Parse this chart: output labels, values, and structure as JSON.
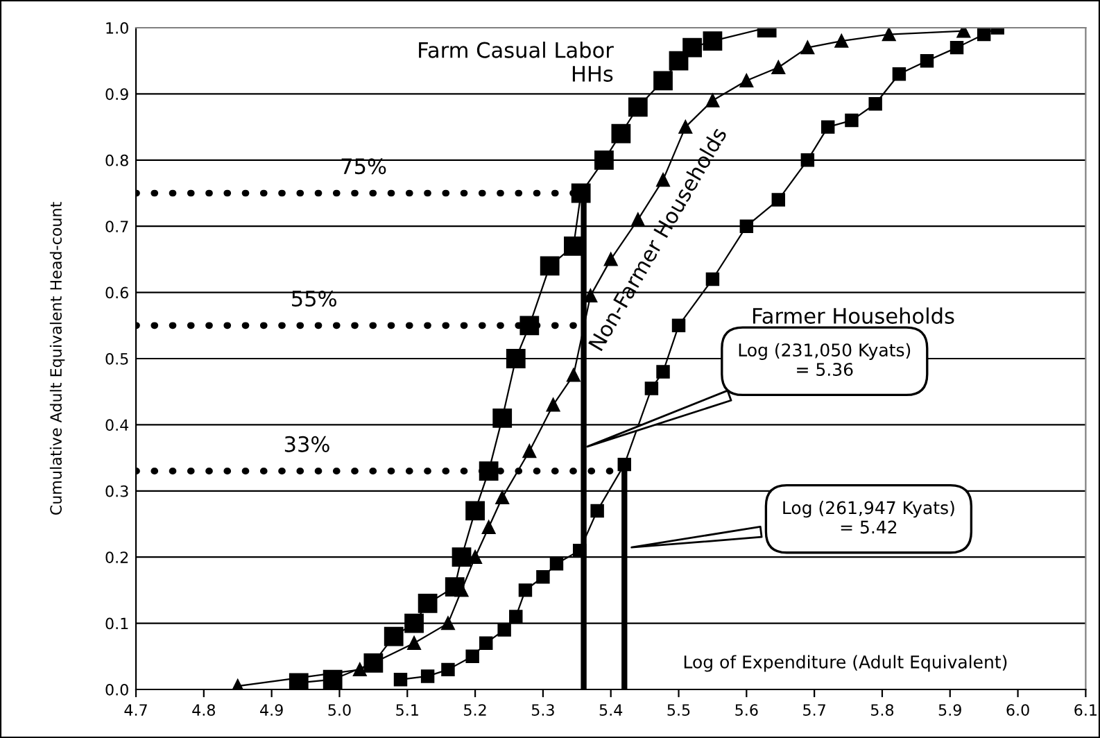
{
  "chart_data": {
    "type": "line",
    "xlabel": "Log of Expenditure (Adult Equivalent)",
    "ylabel": "Cumulative Adult Equivalent Head-count",
    "xlim": [
      4.7,
      6.1
    ],
    "xticks": [
      4.7,
      4.8,
      4.9,
      {
        "value": 5,
        "label": "5.0"
      },
      5.1,
      5.2,
      5.3,
      5.4,
      5.5,
      5.6,
      5.7,
      5.8,
      5.9,
      {
        "value": 6,
        "label": "6.0"
      },
      6.1
    ],
    "ylim": [
      0.0,
      1.0
    ],
    "yticks": [
      {
        "value": 0,
        "label": "0.0"
      },
      0.1,
      0.2,
      0.3,
      0.4,
      0.5,
      0.6,
      0.7,
      0.8,
      0.9,
      {
        "value": 1,
        "label": "1.0"
      }
    ],
    "grid": "y",
    "legend": false,
    "series": [
      {
        "name": "Farm Casual Labor\nHHs",
        "color": "#000000",
        "marker": "square",
        "x": [
          4.94,
          4.99,
          5.05,
          5.08,
          5.11,
          5.13,
          5.17,
          5.18,
          5.2,
          5.22,
          5.24,
          5.26,
          5.28,
          5.31,
          5.345,
          5.356,
          5.39,
          5.415,
          5.44,
          5.477,
          5.5,
          5.52,
          5.55,
          5.63
        ],
        "values": [
          0.01,
          0.015,
          0.04,
          0.08,
          0.1,
          0.13,
          0.155,
          0.2,
          0.27,
          0.33,
          0.41,
          0.5,
          0.55,
          0.64,
          0.67,
          0.75,
          0.8,
          0.84,
          0.88,
          0.92,
          0.95,
          0.97,
          0.98,
          1.0
        ]
      },
      {
        "name": "Non-Farmer Households",
        "color": "#000000",
        "marker": "triangle",
        "x": [
          4.85,
          5.03,
          5.11,
          5.16,
          5.18,
          5.2,
          5.22,
          5.24,
          5.28,
          5.315,
          5.345,
          5.37,
          5.4,
          5.44,
          5.477,
          5.51,
          5.55,
          5.6,
          5.647,
          5.69,
          5.74,
          5.81,
          5.92
        ],
        "values": [
          0.005,
          0.03,
          0.07,
          0.1,
          0.15,
          0.2,
          0.245,
          0.29,
          0.36,
          0.43,
          0.475,
          0.595,
          0.65,
          0.71,
          0.77,
          0.85,
          0.89,
          0.92,
          0.94,
          0.97,
          0.98,
          0.99,
          0.995
        ]
      },
      {
        "name": "Farmer Households",
        "color": "#000000",
        "marker": "square",
        "x": [
          5.09,
          5.13,
          5.16,
          5.196,
          5.216,
          5.243,
          5.26,
          5.274,
          5.3,
          5.32,
          5.354,
          5.38,
          5.42,
          5.46,
          5.477,
          5.5,
          5.55,
          5.6,
          5.647,
          5.69,
          5.72,
          5.755,
          5.79,
          5.825,
          5.866,
          5.91,
          5.95,
          5.97
        ],
        "values": [
          0.015,
          0.02,
          0.03,
          0.05,
          0.07,
          0.09,
          0.11,
          0.15,
          0.17,
          0.19,
          0.21,
          0.27,
          0.34,
          0.455,
          0.48,
          0.55,
          0.62,
          0.7,
          0.74,
          0.8,
          0.85,
          0.86,
          0.885,
          0.93,
          0.95,
          0.97,
          0.99,
          1.0
        ]
      },
      {
        "type": "line",
        "name": "75%",
        "color": "#000000",
        "marker": "none",
        "line_style": "dotted",
        "x": [
          4.7,
          5.345
        ],
        "values": [
          0.75,
          0.75
        ]
      },
      {
        "type": "line",
        "name": "55%",
        "color": "#000000",
        "marker": "none",
        "line_style": "dotted",
        "x": [
          4.7,
          5.356
        ],
        "values": [
          0.55,
          0.55
        ]
      },
      {
        "type": "line",
        "name": "33%",
        "color": "#000000",
        "marker": "none",
        "line_style": "dotted",
        "x": [
          4.7,
          5.4
        ],
        "values": [
          0.33,
          0.33
        ]
      },
      {
        "type": "line",
        "color": "#000000",
        "marker": "none",
        "line_style": "solid",
        "x": [
          5.36,
          5.36
        ],
        "values": [
          0.0,
          0.75
        ]
      },
      {
        "type": "line",
        "color": "#000000",
        "marker": "none",
        "line_style": "solid",
        "x": [
          5.42,
          5.42
        ],
        "values": [
          0.0,
          0.33
        ]
      }
    ],
    "annotations": [
      {
        "text": "Log (231,050 Kyats)\n= 5.36",
        "x": 5.36,
        "y": 0.365
      },
      {
        "text": "Log (261,947 Kyats)\n= 5.42",
        "x": 5.425,
        "y": 0.214
      }
    ]
  }
}
